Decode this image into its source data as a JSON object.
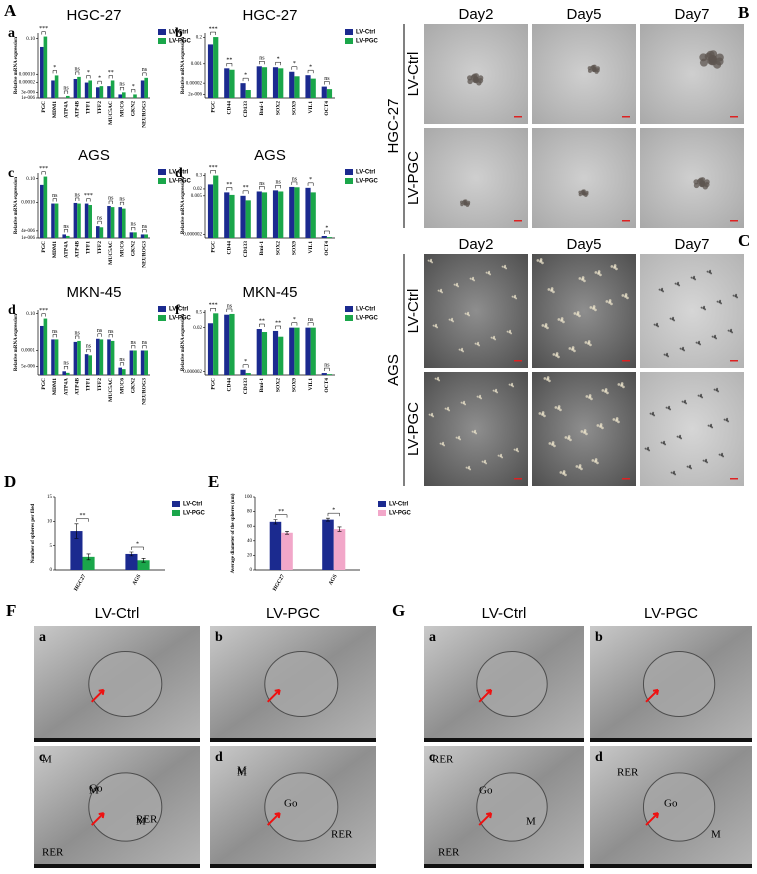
{
  "figure": {
    "panel_letters": [
      "A",
      "B",
      "C",
      "D",
      "E",
      "F",
      "G"
    ],
    "B": {
      "cell_line": "HGC-27",
      "days": [
        "Day2",
        "Day5",
        "Day7"
      ],
      "groups": [
        "LV-Ctrl",
        "LV-PGC"
      ]
    },
    "C": {
      "cell_line": "AGS",
      "days": [
        "Day2",
        "Day5",
        "Day7"
      ],
      "groups": [
        "LV-Ctrl",
        "LV-PGC"
      ]
    },
    "F": {
      "columns": [
        "LV-Ctrl",
        "LV-PGC"
      ],
      "subpanels": [
        "a",
        "b",
        "c",
        "d"
      ],
      "labels_c": [
        "M",
        "M",
        "M",
        "RER",
        "Go",
        "RER"
      ],
      "labels_d": [
        "M",
        "Go",
        "RER",
        "M"
      ]
    },
    "G": {
      "columns": [
        "LV-Ctrl",
        "LV-PGC"
      ],
      "subpanels": [
        "a",
        "b",
        "c",
        "d"
      ],
      "labels_c": [
        "RER",
        "Go",
        "M",
        "RER"
      ],
      "labels_d": [
        "RER",
        "Go",
        "M"
      ]
    }
  },
  "chart_data": [
    {
      "type": "bar",
      "title": "HGC-27",
      "panel": "a",
      "ylabel": "Relative mRNA expression",
      "log": true,
      "categories": [
        "PGC",
        "MDM1",
        "ATP4A",
        "ATP4B",
        "TFF1",
        "TFF2",
        "MUC5AC",
        "MUC6",
        "GKN2",
        "NEUROG3"
      ],
      "series": [
        {
          "name": "LV-Ctrl",
          "color": "#1b2a8f",
          "values": [
            0.02,
            3e-05,
            1e-06,
            4e-05,
            2e-05,
            8e-06,
            1e-05,
            2e-06,
            1e-06,
            3e-05
          ]
        },
        {
          "name": "LV-PGC",
          "color": "#1aa64a",
          "values": [
            0.15,
            8e-05,
            1.5e-06,
            6e-05,
            3e-05,
            1e-05,
            3e-05,
            3e-06,
            2e-06,
            5e-05
          ]
        }
      ],
      "annotations": [
        "***",
        "*",
        "ns",
        "ns",
        "*",
        "*",
        "**",
        "ns",
        "*",
        "ns"
      ],
      "ylim": [
        1e-06,
        0.3
      ],
      "yticks": [
        {
          "value": 0.1,
          "label": "0.10"
        },
        {
          "value": 0.0001,
          "label": "0.00010"
        },
        2e-05,
        {
          "value": 3e-06,
          "label": "3e-006"
        },
        {
          "value": 1e-06,
          "label": "1e-006"
        }
      ]
    },
    {
      "type": "bar",
      "title": "HGC-27",
      "panel": "b",
      "ylabel": "Relative mRNA expression",
      "log": true,
      "categories": [
        "PGC",
        "CD44",
        "CD133",
        "Bmi-1",
        "SOX2",
        "SOX9",
        "VIL1",
        "OCT4"
      ],
      "series": [
        {
          "name": "LV-Ctrl",
          "color": "#1b2a8f",
          "values": [
            0.05,
            0.0004,
            2e-05,
            0.0006,
            0.0005,
            0.0002,
            0.0001,
            1e-05
          ]
        },
        {
          "name": "LV-PGC",
          "color": "#1aa64a",
          "values": [
            0.22,
            0.0003,
            5e-06,
            0.0005,
            0.0004,
            8e-05,
            5e-05,
            6e-06
          ]
        }
      ],
      "annotations": [
        "***",
        "**",
        "*",
        "ns",
        "*",
        "*",
        "*",
        "ns"
      ],
      "ylim": [
        1e-06,
        0.5
      ],
      "yticks": [
        0.2,
        0.001,
        2e-05,
        {
          "value": 2e-06,
          "label": "2e-006"
        }
      ]
    },
    {
      "type": "bar",
      "title": "AGS",
      "panel": "c",
      "ylabel": "Relative mRNA expression",
      "log": true,
      "categories": [
        "PGC",
        "MDM1",
        "ATP4A",
        "ATP4B",
        "TFF1",
        "TFF2",
        "MUC5AC",
        "MUC6",
        "GKN2",
        "NEUROG3"
      ],
      "series": [
        {
          "name": "LV-Ctrl",
          "color": "#1b2a8f",
          "values": [
            0.03,
            0.0008,
            2e-06,
            0.0009,
            0.0008,
            1e-05,
            0.0005,
            0.0004,
            3e-06,
            2e-06
          ]
        },
        {
          "name": "LV-PGC",
          "color": "#1aa64a",
          "values": [
            0.15,
            0.0008,
            1.5e-06,
            0.0008,
            0.0006,
            8e-06,
            0.0004,
            0.0003,
            3e-06,
            2e-06
          ]
        }
      ],
      "annotations": [
        "***",
        "ns",
        "ns",
        "ns",
        "***",
        "ns",
        "ns",
        "ns",
        "ns",
        "ns"
      ],
      "ylim": [
        1e-06,
        0.3
      ],
      "yticks": [
        {
          "value": 0.1,
          "label": "0.10"
        },
        {
          "value": 0.001,
          "label": "0.0010"
        },
        {
          "value": 4e-06,
          "label": "4e-006"
        },
        {
          "value": 1e-06,
          "label": "1e-006"
        }
      ]
    },
    {
      "type": "bar",
      "title": "AGS",
      "panel": "d",
      "ylabel": "Relative mRNA expression",
      "log": true,
      "categories": [
        "PGC",
        "CD44",
        "CD133",
        "Bmi-1",
        "SOX2",
        "SOX9",
        "VIL1",
        "OCT4"
      ],
      "series": [
        {
          "name": "LV-Ctrl",
          "color": "#1b2a8f",
          "values": [
            0.05,
            0.01,
            0.005,
            0.012,
            0.015,
            0.03,
            0.025,
            1.5e-06
          ]
        },
        {
          "name": "LV-PGC",
          "color": "#1aa64a",
          "values": [
            0.3,
            0.006,
            0.002,
            0.01,
            0.012,
            0.028,
            0.01,
            1.2e-06
          ]
        }
      ],
      "annotations": [
        "***",
        "**",
        "**",
        "ns",
        "ns",
        "ns",
        "*",
        "*"
      ],
      "ylim": [
        1e-06,
        0.5
      ],
      "yticks": [
        0.3,
        0.02,
        0.005,
        2e-06
      ]
    },
    {
      "type": "bar",
      "title": "MKN-45",
      "panel": "d",
      "ylabel": "Relative mRNA expression",
      "log": true,
      "categories": [
        "PGC",
        "MDM1",
        "ATP4A",
        "ATP4B",
        "TFF1",
        "TFF2",
        "MUC5AC",
        "MUC6",
        "GKN2",
        "NEUROG3"
      ],
      "series": [
        {
          "name": "LV-Ctrl",
          "color": "#1b2a8f",
          "values": [
            0.01,
            0.0008,
            2e-06,
            0.0005,
            5e-05,
            0.0009,
            0.0008,
            4e-06,
            0.0001,
            0.0001
          ]
        },
        {
          "name": "LV-PGC",
          "color": "#1aa64a",
          "values": [
            0.04,
            0.0008,
            1.5e-06,
            0.0006,
            4e-05,
            0.0008,
            0.0006,
            3e-06,
            0.0001,
            0.0001
          ]
        }
      ],
      "annotations": [
        "***",
        "ns",
        "ns",
        "ns",
        "ns",
        "ns",
        "ns",
        "ns",
        "ns",
        "ns"
      ],
      "ylim": [
        1e-06,
        0.2
      ],
      "yticks": [
        {
          "value": 0.1,
          "label": "0.10"
        },
        0.0001,
        {
          "value": 5e-06,
          "label": "5e-006"
        }
      ]
    },
    {
      "type": "bar",
      "title": "MKN-45",
      "panel": "f",
      "ylabel": "Relative mRNA expression",
      "log": true,
      "categories": [
        "PGC",
        "CD44",
        "CD133",
        "Bmi-1",
        "SOX2",
        "SOX9",
        "VIL1",
        "OCT4"
      ],
      "series": [
        {
          "name": "LV-Ctrl",
          "color": "#1b2a8f",
          "values": [
            0.05,
            0.3,
            3e-06,
            0.015,
            0.01,
            0.02,
            0.02,
            1.5e-06
          ]
        },
        {
          "name": "LV-PGC",
          "color": "#1aa64a",
          "values": [
            0.4,
            0.35,
            1.5e-06,
            0.008,
            0.003,
            0.02,
            0.02,
            1.2e-06
          ]
        }
      ],
      "annotations": [
        "***",
        "ns",
        "*",
        "**",
        "**",
        "*",
        "ns",
        "ns"
      ],
      "ylim": [
        1e-06,
        0.8
      ],
      "yticks": [
        0.5,
        0.02,
        2e-06
      ]
    },
    {
      "type": "bar",
      "ylabel": "Number of spheres per filed",
      "categories": [
        "HGC27",
        "AGS"
      ],
      "series": [
        {
          "name": "LV-Ctrl",
          "color": "#1b2a8f",
          "values": [
            8,
            3.3
          ],
          "errors": [
            1.5,
            0.4
          ]
        },
        {
          "name": "LV-PGC",
          "color": "#1aa64a",
          "values": [
            2.7,
            2
          ],
          "errors": [
            0.6,
            0.4
          ]
        }
      ],
      "annotations": [
        "**",
        "*"
      ],
      "ylim": [
        0,
        15
      ],
      "yticks": [
        0,
        5,
        10,
        15
      ]
    },
    {
      "type": "bar",
      "ylabel": "Average diameter of the spheres (um)",
      "categories": [
        "HGC27",
        "AGS"
      ],
      "series": [
        {
          "name": "LV-Ctrl",
          "color": "#1b2a8f",
          "values": [
            66,
            69
          ],
          "errors": [
            3,
            2
          ]
        },
        {
          "name": "LV-PGC",
          "color": "#f2a7c9",
          "values": [
            51,
            56
          ],
          "errors": [
            2,
            3
          ]
        }
      ],
      "annotations": [
        "**",
        "*"
      ],
      "ylim": [
        0,
        100
      ],
      "yticks": [
        0,
        20,
        40,
        60,
        80,
        100
      ]
    }
  ]
}
